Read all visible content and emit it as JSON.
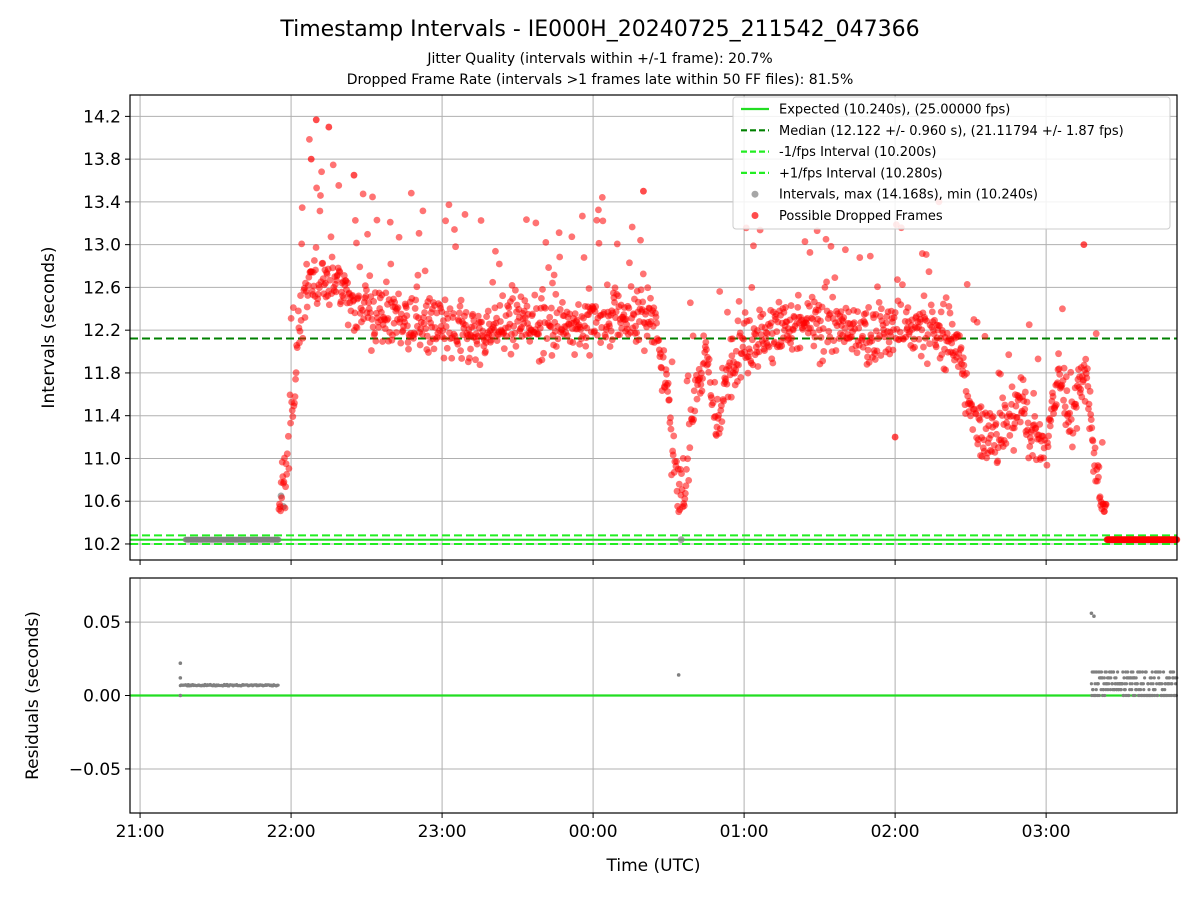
{
  "title": "Timestamp Intervals - IE000H_20240725_211542_047366",
  "subtitle_1": "Jitter Quality (intervals within +/-1 frame): 20.7%",
  "subtitle_2": "Dropped Frame Rate (intervals >1 frames late within 50 FF files): 81.5%",
  "colors": {
    "expected": "#22dd22",
    "median": "#008000",
    "fps_interval": "#22ee22",
    "intervals": "#808080",
    "dropped": "#ff0000"
  },
  "chart_data": [
    {
      "type": "scatter",
      "panel": "top",
      "xlabel": "",
      "ylabel": "Intervals (seconds)",
      "ylim": [
        10.05,
        14.4
      ],
      "xlim": [
        "20:56",
        "03:52"
      ],
      "yticks": [
        "10.2",
        "10.6",
        "11.0",
        "11.4",
        "11.8",
        "12.2",
        "12.6",
        "13.0",
        "13.4",
        "13.8",
        "14.2"
      ],
      "grid": true,
      "legend_position": "top-right",
      "legend": [
        "Expected (10.240s), (25.00000 fps)",
        "Median (12.122 +/- 0.960 s), (21.11794 +/- 1.87 fps)",
        "-1/fps Interval (10.200s)",
        "+1/fps Interval (10.280s)",
        "Intervals, max (14.168s), min (10.240s)",
        "Possible Dropped Frames"
      ],
      "reference_lines": {
        "expected": 10.24,
        "median": 12.122,
        "minus_fps": 10.2,
        "plus_fps": 10.28
      },
      "intervals_trend": [
        [
          "21:18",
          10.24
        ],
        [
          "21:30",
          10.24
        ],
        [
          "21:45",
          10.24
        ],
        [
          "21:55",
          10.24
        ],
        [
          "21:56",
          10.55
        ],
        [
          "21:58",
          10.9
        ],
        [
          "22:00",
          11.3
        ],
        [
          "22:03",
          12.2
        ],
        [
          "22:06",
          12.6
        ],
        [
          "22:15",
          12.7
        ],
        [
          "22:30",
          12.4
        ],
        [
          "22:45",
          12.3
        ],
        [
          "23:00",
          12.2
        ],
        [
          "23:15",
          12.15
        ],
        [
          "23:30",
          12.3
        ],
        [
          "23:45",
          12.25
        ],
        [
          "00:00",
          12.3
        ],
        [
          "00:15",
          12.35
        ],
        [
          "00:25",
          12.3
        ],
        [
          "00:30",
          11.5
        ],
        [
          "00:33",
          10.75
        ],
        [
          "00:36",
          10.6
        ],
        [
          "00:40",
          11.6
        ],
        [
          "00:45",
          11.9
        ],
        [
          "00:50",
          11.3
        ],
        [
          "00:55",
          11.95
        ],
        [
          "01:00",
          12.1
        ],
        [
          "01:15",
          12.2
        ],
        [
          "01:30",
          12.25
        ],
        [
          "01:45",
          12.15
        ],
        [
          "02:00",
          12.2
        ],
        [
          "02:15",
          12.2
        ],
        [
          "02:25",
          12.1
        ],
        [
          "02:30",
          11.4
        ],
        [
          "02:40",
          11.2
        ],
        [
          "02:50",
          11.5
        ],
        [
          "02:55",
          11.2
        ],
        [
          "03:00",
          11.1
        ],
        [
          "03:05",
          11.8
        ],
        [
          "03:10",
          11.3
        ],
        [
          "03:15",
          11.9
        ],
        [
          "03:18",
          11.4
        ],
        [
          "03:20",
          10.9
        ],
        [
          "03:22",
          10.5
        ],
        [
          "03:24",
          10.24
        ],
        [
          "03:35",
          10.24
        ],
        [
          "03:52",
          10.24
        ]
      ],
      "notable_points": [
        [
          "22:10",
          14.168
        ],
        [
          "22:15",
          14.1
        ],
        [
          "22:08",
          13.8
        ],
        [
          "22:25",
          13.65
        ],
        [
          "00:35",
          10.24
        ],
        [
          "21:56",
          10.65
        ],
        [
          "21:57",
          10.55
        ],
        [
          "02:00",
          11.2
        ],
        [
          "00:20",
          13.5
        ],
        [
          "03:15",
          13.0
        ]
      ]
    },
    {
      "type": "scatter",
      "panel": "bottom",
      "xlabel": "Time (UTC)",
      "ylabel": "Residuals (seconds)",
      "ylim": [
        -0.08,
        0.08
      ],
      "xlim": [
        "20:56",
        "03:52"
      ],
      "yticks": [
        "−0.05",
        "0.00",
        "0.05"
      ],
      "xticks": [
        "21:00",
        "22:00",
        "23:00",
        "00:00",
        "01:00",
        "02:00",
        "03:00"
      ],
      "grid": true,
      "expected_residual": 0.0,
      "residual_segments": [
        {
          "start": "21:16",
          "end": "21:55",
          "value": 0.007
        },
        {
          "start": "03:18",
          "end": "03:52",
          "values": [
            0.0,
            0.004,
            0.008,
            0.012,
            0.016
          ]
        }
      ],
      "notable_points": [
        [
          "21:16",
          0.022
        ],
        [
          "21:16",
          0.012
        ],
        [
          "21:16",
          0.0
        ],
        [
          "00:34",
          0.014
        ],
        [
          "03:18",
          0.056
        ],
        [
          "03:19",
          0.054
        ]
      ]
    }
  ]
}
